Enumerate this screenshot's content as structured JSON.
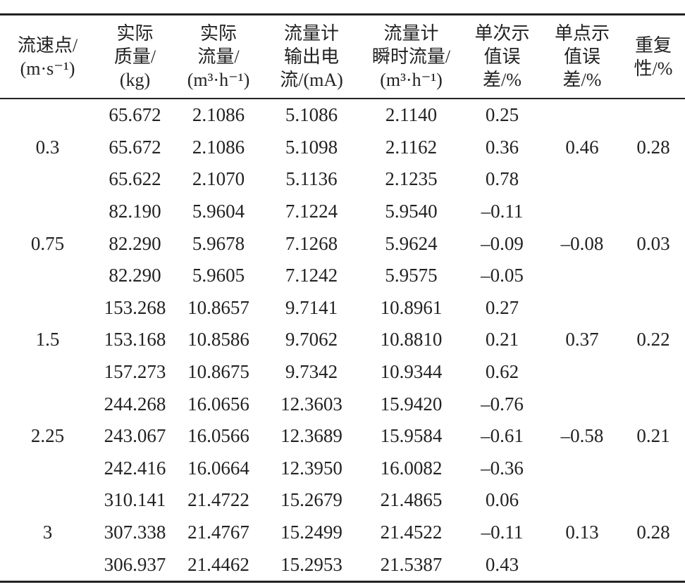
{
  "table": {
    "headers": [
      [
        "流速点/",
        "(m·s⁻¹)"
      ],
      [
        "实际",
        "质量/",
        "(kg)"
      ],
      [
        "实际",
        "流量/",
        "(m³·h⁻¹)"
      ],
      [
        "流量计",
        "输出电",
        "流/(mA)"
      ],
      [
        "流量计",
        "瞬时流量/",
        "(m³·h⁻¹)"
      ],
      [
        "单次示",
        "值误",
        "差/%"
      ],
      [
        "单点示",
        "值误",
        "差/%"
      ],
      [
        "重复",
        "性/%"
      ]
    ],
    "groups": [
      {
        "speed": "0.3",
        "rows": [
          [
            "65.672",
            "2.1086",
            "5.1086",
            "2.1140",
            "0.25"
          ],
          [
            "65.672",
            "2.1086",
            "5.1098",
            "2.1162",
            "0.36"
          ],
          [
            "65.622",
            "2.1070",
            "5.1136",
            "2.1235",
            "0.78"
          ]
        ],
        "point_error": "0.46",
        "repeatability": "0.28"
      },
      {
        "speed": "0.75",
        "rows": [
          [
            "82.190",
            "5.9604",
            "7.1224",
            "5.9540",
            "–0.11"
          ],
          [
            "82.290",
            "5.9678",
            "7.1268",
            "5.9624",
            "–0.09"
          ],
          [
            "82.290",
            "5.9605",
            "7.1242",
            "5.9575",
            "–0.05"
          ]
        ],
        "point_error": "–0.08",
        "repeatability": "0.03"
      },
      {
        "speed": "1.5",
        "rows": [
          [
            "153.268",
            "10.8657",
            "9.7141",
            "10.8961",
            "0.27"
          ],
          [
            "153.168",
            "10.8586",
            "9.7062",
            "10.8810",
            "0.21"
          ],
          [
            "157.273",
            "10.8675",
            "9.7342",
            "10.9344",
            "0.62"
          ]
        ],
        "point_error": "0.37",
        "repeatability": "0.22"
      },
      {
        "speed": "2.25",
        "rows": [
          [
            "244.268",
            "16.0656",
            "12.3603",
            "15.9420",
            "–0.76"
          ],
          [
            "243.067",
            "16.0566",
            "12.3689",
            "15.9584",
            "–0.61"
          ],
          [
            "242.416",
            "16.0664",
            "12.3950",
            "16.0082",
            "–0.36"
          ]
        ],
        "point_error": "–0.58",
        "repeatability": "0.21"
      },
      {
        "speed": "3",
        "rows": [
          [
            "310.141",
            "21.4722",
            "15.2679",
            "21.4865",
            "0.06"
          ],
          [
            "307.338",
            "21.4767",
            "15.2499",
            "21.4522",
            "–0.11"
          ],
          [
            "306.937",
            "21.4462",
            "15.2953",
            "21.5387",
            "0.43"
          ]
        ],
        "point_error": "0.13",
        "repeatability": "0.28"
      }
    ]
  }
}
